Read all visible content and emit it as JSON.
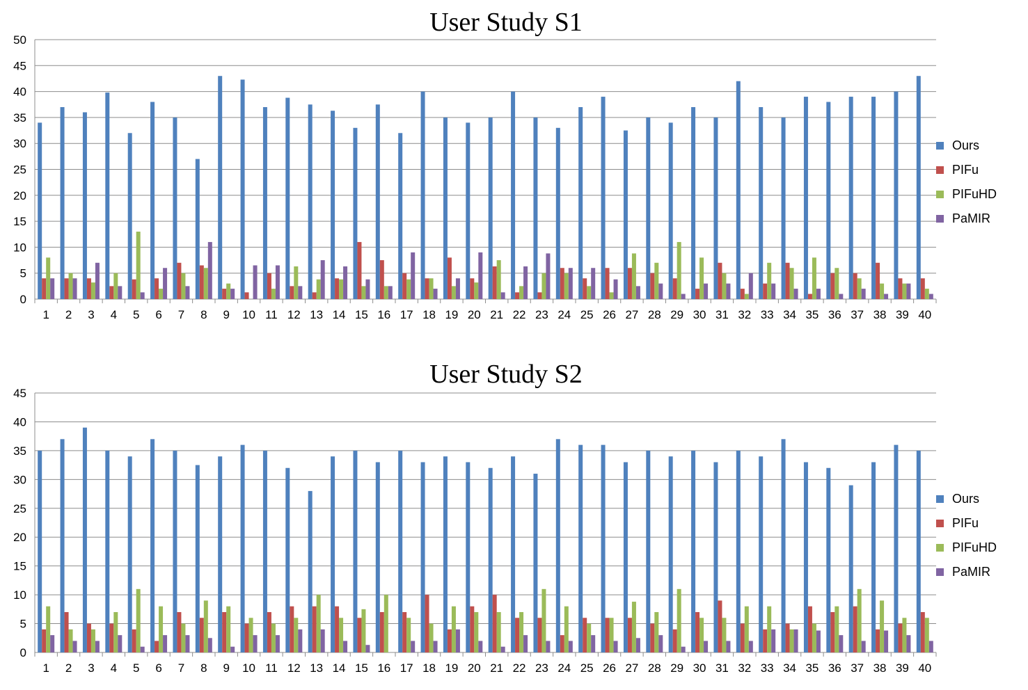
{
  "chart_data": [
    {
      "type": "bar",
      "title": "User Study S1",
      "xlabel": "",
      "ylabel": "",
      "ylim": [
        0,
        50
      ],
      "yticks": [
        0,
        5,
        10,
        15,
        20,
        25,
        30,
        35,
        40,
        45,
        50
      ],
      "grid": true,
      "legend": "right",
      "categories": [
        "1",
        "2",
        "3",
        "4",
        "5",
        "6",
        "7",
        "8",
        "9",
        "10",
        "11",
        "12",
        "13",
        "14",
        "15",
        "16",
        "17",
        "18",
        "19",
        "20",
        "21",
        "22",
        "23",
        "24",
        "25",
        "26",
        "27",
        "28",
        "29",
        "30",
        "31",
        "32",
        "33",
        "34",
        "35",
        "36",
        "37",
        "38",
        "39",
        "40"
      ],
      "series": [
        {
          "name": "Ours",
          "color": "#4f81bd",
          "values": [
            34,
            37,
            36,
            39.8,
            32,
            38,
            35,
            27,
            43,
            42.3,
            37,
            38.8,
            37.5,
            36.3,
            33,
            37.5,
            32,
            40,
            35,
            34,
            35,
            40,
            35,
            33,
            37,
            39,
            32.5,
            35,
            34,
            37,
            35,
            42,
            37,
            35,
            39,
            38,
            39,
            39,
            40,
            43
          ]
        },
        {
          "name": "PIFu",
          "color": "#c0504d",
          "values": [
            4,
            4,
            4,
            2.5,
            3.8,
            4,
            7,
            6.5,
            2,
            1.3,
            5,
            2.5,
            1.3,
            4,
            11,
            7.5,
            5,
            4,
            8,
            4,
            6.3,
            1.3,
            1.3,
            6,
            4,
            6,
            6,
            5,
            4,
            2,
            7,
            2,
            3,
            7,
            1,
            5,
            5,
            7,
            4,
            4
          ]
        },
        {
          "name": "PIFuHD",
          "color": "#9bbb59",
          "values": [
            8,
            5,
            3.2,
            5,
            13,
            2,
            5,
            6,
            3,
            0,
            2,
            6.3,
            3.8,
            3.8,
            2.5,
            2.5,
            3.8,
            4,
            2.5,
            3.2,
            7.5,
            2.5,
            5,
            5,
            2.5,
            1.3,
            8.8,
            7,
            11,
            8,
            5,
            1,
            7,
            6,
            8,
            6,
            4,
            3,
            3,
            2
          ]
        },
        {
          "name": "PaMIR",
          "color": "#8064a2",
          "values": [
            4,
            4,
            7,
            2.5,
            1.3,
            6,
            2.5,
            11,
            2,
            6.5,
            6.5,
            2.5,
            7.5,
            6.3,
            3.8,
            2.5,
            9,
            2,
            4,
            9,
            1.3,
            6.3,
            8.8,
            6,
            6,
            3.8,
            2.5,
            3,
            1,
            3,
            3,
            5,
            3,
            2,
            2,
            1,
            2,
            1,
            3,
            1
          ]
        }
      ]
    },
    {
      "type": "bar",
      "title": "User Study S2",
      "xlabel": "",
      "ylabel": "",
      "ylim": [
        0,
        45
      ],
      "yticks": [
        0,
        5,
        10,
        15,
        20,
        25,
        30,
        35,
        40,
        45
      ],
      "grid": true,
      "legend": "right",
      "categories": [
        "1",
        "2",
        "3",
        "4",
        "5",
        "6",
        "7",
        "8",
        "9",
        "10",
        "11",
        "12",
        "13",
        "14",
        "15",
        "16",
        "17",
        "18",
        "19",
        "20",
        "21",
        "22",
        "23",
        "24",
        "25",
        "26",
        "27",
        "28",
        "29",
        "30",
        "31",
        "32",
        "33",
        "34",
        "35",
        "36",
        "37",
        "38",
        "39",
        "40"
      ],
      "series": [
        {
          "name": "Ours",
          "color": "#4f81bd",
          "values": [
            35,
            37,
            39,
            35,
            34,
            37,
            35,
            32.5,
            34,
            36,
            35,
            32,
            28,
            34,
            35,
            33,
            35,
            33,
            34,
            33,
            32,
            34,
            31,
            37,
            36,
            36,
            33,
            35,
            34,
            35,
            33,
            35,
            34,
            37,
            33,
            32,
            29,
            33,
            36,
            35
          ]
        },
        {
          "name": "PIFu",
          "color": "#c0504d",
          "values": [
            4,
            7,
            5,
            5,
            4,
            2,
            7,
            6,
            7,
            5,
            7,
            8,
            8,
            8,
            6,
            7,
            7,
            10,
            4,
            8,
            10,
            6,
            6,
            3,
            6,
            6,
            6,
            5,
            4,
            7,
            9,
            5,
            4,
            5,
            8,
            7,
            8,
            4,
            5,
            7
          ]
        },
        {
          "name": "PIFuHD",
          "color": "#9bbb59",
          "values": [
            8,
            4,
            4,
            7,
            11,
            8,
            5,
            9,
            8,
            6,
            5,
            6,
            10,
            6,
            7.5,
            10,
            6,
            5,
            8,
            7,
            7,
            7,
            11,
            8,
            5,
            6,
            8.8,
            7,
            11,
            6,
            6,
            8,
            8,
            4,
            5,
            8,
            11,
            9,
            6,
            6
          ]
        },
        {
          "name": "PaMIR",
          "color": "#8064a2",
          "values": [
            3,
            2,
            2,
            3,
            1,
            3,
            3,
            2.5,
            1,
            3,
            3,
            4,
            4,
            2,
            1.3,
            0,
            2,
            2,
            4,
            2,
            1,
            3,
            2,
            2,
            3,
            2,
            2.5,
            3,
            1,
            2,
            2,
            2,
            4,
            4,
            3.8,
            3,
            2,
            3.8,
            3,
            2
          ]
        }
      ]
    }
  ]
}
